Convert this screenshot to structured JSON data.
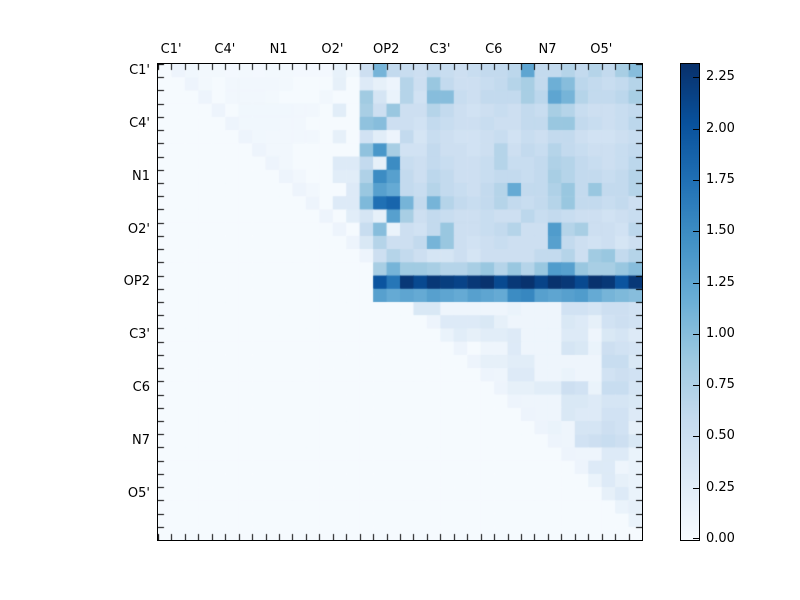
{
  "chart_data": {
    "type": "heatmap",
    "title": "",
    "xlabel": "",
    "ylabel": "",
    "axis_labels": [
      "C1'",
      "C4'",
      "N1",
      "O2'",
      "OP2",
      "C3'",
      "C6",
      "N7",
      "O5'"
    ],
    "cells_per_label": 4,
    "n": 36,
    "x_axis_side": "top",
    "triangle": "upper",
    "vmin": 0.0,
    "vmax": 2.32,
    "colormap": {
      "name": "Blues",
      "stops": [
        [
          0.0,
          "#f7fbff"
        ],
        [
          0.125,
          "#deebf7"
        ],
        [
          0.25,
          "#c6dbef"
        ],
        [
          0.375,
          "#9ecae1"
        ],
        [
          0.5,
          "#6baed6"
        ],
        [
          0.625,
          "#4292c6"
        ],
        [
          0.75,
          "#2171b5"
        ],
        [
          0.875,
          "#08519c"
        ],
        [
          1.0,
          "#08306b"
        ]
      ]
    },
    "colorbar": {
      "tick_values": [
        0.0,
        0.25,
        0.5,
        0.75,
        1.0,
        1.25,
        1.5,
        1.75,
        2.0,
        2.25
      ],
      "tick_labels": [
        "0.00",
        "0.25",
        "0.50",
        "0.75",
        "1.00",
        "1.25",
        "1.50",
        "1.75",
        "2.00",
        "2.25"
      ]
    },
    "matrix": [
      [
        0.02,
        0.12,
        0.08,
        0.06,
        0.06,
        0.05,
        0.06,
        0.05,
        0.06,
        0.06,
        0.05,
        0.05,
        0.05,
        0.18,
        0.08,
        0.5,
        1.1,
        0.6,
        0.55,
        0.5,
        0.6,
        0.55,
        0.5,
        0.55,
        0.6,
        0.6,
        0.65,
        1.25,
        0.6,
        0.6,
        0.7,
        0.6,
        0.7,
        0.6,
        0.8,
        1.0
      ],
      [
        0.02,
        0.02,
        0.12,
        0.06,
        0.02,
        0.07,
        0.07,
        0.07,
        0.07,
        0.06,
        0.02,
        0.02,
        0.02,
        0.2,
        0.02,
        0.3,
        0.2,
        0.12,
        0.7,
        0.5,
        0.9,
        0.6,
        0.5,
        0.5,
        0.55,
        0.6,
        0.7,
        0.8,
        0.6,
        1.15,
        1.0,
        0.65,
        0.6,
        0.55,
        0.6,
        0.7
      ],
      [
        0.02,
        0.02,
        0.02,
        0.12,
        0.02,
        0.07,
        0.07,
        0.07,
        0.06,
        0.02,
        0.02,
        0.02,
        0.07,
        0.02,
        0.02,
        0.85,
        0.4,
        0.15,
        0.7,
        0.45,
        1.0,
        1.0,
        0.55,
        0.5,
        0.6,
        0.6,
        0.6,
        0.8,
        0.65,
        1.25,
        1.1,
        0.7,
        0.6,
        0.6,
        0.65,
        0.8
      ],
      [
        0.02,
        0.02,
        0.02,
        0.02,
        0.12,
        0.02,
        0.08,
        0.08,
        0.08,
        0.08,
        0.07,
        0.07,
        0.02,
        0.25,
        0.02,
        0.8,
        0.5,
        0.9,
        0.5,
        0.5,
        0.7,
        0.6,
        0.5,
        0.45,
        0.5,
        0.55,
        0.5,
        0.6,
        0.55,
        0.8,
        0.7,
        0.55,
        0.5,
        0.5,
        0.55,
        0.6
      ],
      [
        0.02,
        0.02,
        0.02,
        0.02,
        0.02,
        0.12,
        0.08,
        0.08,
        0.08,
        0.07,
        0.07,
        0.02,
        0.02,
        0.02,
        0.02,
        0.95,
        1.0,
        0.5,
        0.5,
        0.45,
        0.6,
        0.55,
        0.5,
        0.5,
        0.55,
        0.5,
        0.5,
        0.6,
        0.6,
        0.9,
        0.9,
        0.6,
        0.55,
        0.5,
        0.55,
        0.65
      ],
      [
        0.02,
        0.02,
        0.02,
        0.02,
        0.02,
        0.02,
        0.12,
        0.08,
        0.07,
        0.07,
        0.07,
        0.07,
        0.02,
        0.2,
        0.02,
        0.45,
        0.25,
        0.12,
        0.6,
        0.4,
        0.55,
        0.5,
        0.45,
        0.45,
        0.5,
        0.55,
        0.45,
        0.55,
        0.5,
        0.6,
        0.6,
        0.5,
        0.45,
        0.45,
        0.5,
        0.55
      ],
      [
        0.02,
        0.02,
        0.02,
        0.02,
        0.02,
        0.02,
        0.02,
        0.12,
        0.07,
        0.07,
        0.02,
        0.02,
        0.02,
        0.02,
        0.02,
        0.95,
        1.4,
        0.8,
        0.45,
        0.45,
        0.6,
        0.5,
        0.5,
        0.45,
        0.5,
        0.7,
        0.5,
        0.6,
        0.55,
        0.7,
        0.6,
        0.55,
        0.5,
        0.5,
        0.55,
        0.6
      ],
      [
        0.02,
        0.02,
        0.02,
        0.02,
        0.02,
        0.02,
        0.02,
        0.02,
        0.12,
        0.07,
        0.02,
        0.02,
        0.02,
        0.3,
        0.3,
        0.6,
        0.2,
        1.5,
        0.55,
        0.5,
        0.6,
        0.55,
        0.5,
        0.5,
        0.55,
        0.7,
        0.55,
        0.55,
        0.6,
        0.75,
        0.7,
        0.6,
        0.55,
        0.5,
        0.55,
        0.65
      ],
      [
        0.02,
        0.02,
        0.02,
        0.02,
        0.02,
        0.02,
        0.02,
        0.02,
        0.02,
        0.12,
        0.07,
        0.02,
        0.02,
        0.25,
        0.25,
        0.75,
        1.5,
        1.3,
        0.6,
        0.5,
        0.65,
        0.6,
        0.5,
        0.5,
        0.55,
        0.6,
        0.6,
        0.55,
        0.6,
        0.8,
        0.7,
        0.6,
        0.6,
        0.55,
        0.6,
        0.7
      ],
      [
        0.02,
        0.02,
        0.02,
        0.02,
        0.02,
        0.02,
        0.02,
        0.02,
        0.02,
        0.02,
        0.12,
        0.07,
        0.02,
        0.02,
        0.3,
        0.9,
        1.3,
        1.2,
        0.6,
        0.55,
        0.7,
        0.6,
        0.55,
        0.5,
        0.6,
        0.7,
        1.2,
        0.6,
        0.6,
        0.75,
        0.9,
        0.6,
        0.9,
        0.6,
        0.6,
        0.7
      ],
      [
        0.02,
        0.02,
        0.02,
        0.02,
        0.02,
        0.02,
        0.02,
        0.02,
        0.02,
        0.02,
        0.02,
        0.12,
        0.02,
        0.3,
        0.3,
        1.05,
        1.75,
        1.85,
        1.1,
        0.6,
        1.1,
        0.7,
        0.6,
        0.55,
        0.6,
        0.7,
        0.6,
        0.55,
        0.6,
        0.7,
        0.9,
        0.6,
        0.6,
        0.55,
        0.6,
        0.5
      ],
      [
        0.02,
        0.02,
        0.02,
        0.02,
        0.02,
        0.02,
        0.02,
        0.02,
        0.02,
        0.02,
        0.02,
        0.02,
        0.12,
        0.02,
        0.25,
        0.4,
        0.2,
        1.3,
        0.8,
        0.5,
        0.6,
        0.55,
        0.5,
        0.5,
        0.55,
        0.5,
        0.5,
        0.65,
        0.55,
        0.6,
        0.55,
        0.5,
        0.5,
        0.45,
        0.5,
        0.55
      ],
      [
        0.02,
        0.02,
        0.02,
        0.02,
        0.02,
        0.02,
        0.02,
        0.02,
        0.02,
        0.02,
        0.02,
        0.02,
        0.02,
        0.12,
        0.02,
        0.55,
        1.0,
        0.15,
        0.5,
        0.45,
        0.6,
        0.9,
        0.5,
        0.5,
        0.55,
        0.6,
        0.7,
        0.5,
        0.5,
        1.35,
        0.7,
        0.8,
        0.5,
        0.5,
        0.45,
        0.65
      ],
      [
        0.02,
        0.02,
        0.02,
        0.02,
        0.02,
        0.02,
        0.02,
        0.02,
        0.02,
        0.02,
        0.02,
        0.02,
        0.02,
        0.02,
        0.12,
        0.35,
        0.7,
        0.5,
        0.5,
        0.6,
        1.1,
        0.9,
        0.5,
        0.45,
        0.5,
        0.55,
        0.5,
        0.5,
        0.5,
        1.3,
        0.6,
        0.5,
        0.45,
        0.5,
        0.4,
        0.5
      ],
      [
        0.02,
        0.02,
        0.02,
        0.02,
        0.02,
        0.02,
        0.02,
        0.02,
        0.02,
        0.02,
        0.02,
        0.02,
        0.02,
        0.02,
        0.02,
        0.12,
        0.5,
        0.7,
        0.6,
        0.5,
        0.4,
        0.4,
        0.5,
        0.4,
        0.5,
        0.5,
        0.5,
        0.5,
        0.6,
        0.6,
        0.7,
        0.5,
        0.85,
        0.9,
        0.6,
        0.7
      ],
      [
        0.02,
        0.02,
        0.02,
        0.02,
        0.02,
        0.02,
        0.02,
        0.02,
        0.02,
        0.02,
        0.02,
        0.02,
        0.02,
        0.02,
        0.02,
        0.02,
        0.8,
        1.1,
        0.85,
        0.85,
        0.8,
        0.7,
        0.7,
        0.8,
        0.9,
        0.7,
        0.9,
        0.7,
        0.9,
        1.35,
        1.3,
        0.9,
        0.8,
        0.8,
        0.9,
        1.0
      ],
      [
        0.02,
        0.02,
        0.02,
        0.02,
        0.02,
        0.02,
        0.02,
        0.02,
        0.02,
        0.02,
        0.02,
        0.02,
        0.02,
        0.02,
        0.02,
        0.02,
        2.0,
        1.7,
        2.25,
        2.1,
        2.25,
        2.2,
        2.15,
        2.25,
        2.3,
        2.1,
        2.25,
        2.3,
        2.15,
        2.3,
        2.25,
        2.1,
        2.3,
        2.25,
        2.0,
        2.25
      ],
      [
        0.02,
        0.02,
        0.02,
        0.02,
        0.02,
        0.02,
        0.02,
        0.02,
        0.02,
        0.02,
        0.02,
        0.02,
        0.02,
        0.02,
        0.02,
        0.02,
        1.3,
        1.2,
        1.25,
        1.2,
        1.3,
        1.25,
        1.2,
        1.3,
        1.25,
        1.2,
        1.5,
        1.55,
        1.3,
        1.25,
        1.3,
        1.35,
        1.2,
        1.1,
        1.05,
        1.0
      ],
      [
        0.02,
        0.02,
        0.02,
        0.02,
        0.02,
        0.02,
        0.02,
        0.02,
        0.02,
        0.02,
        0.02,
        0.02,
        0.02,
        0.02,
        0.02,
        0.02,
        0.02,
        0.02,
        0.02,
        0.35,
        0.35,
        0.1,
        0.1,
        0.1,
        0.1,
        0.1,
        0.15,
        0.1,
        0.1,
        0.1,
        0.45,
        0.45,
        0.4,
        0.5,
        0.5,
        0.45
      ],
      [
        0.02,
        0.02,
        0.02,
        0.02,
        0.02,
        0.02,
        0.02,
        0.02,
        0.02,
        0.02,
        0.02,
        0.02,
        0.02,
        0.02,
        0.02,
        0.02,
        0.02,
        0.02,
        0.02,
        0.02,
        0.12,
        0.3,
        0.3,
        0.3,
        0.35,
        0.2,
        0.1,
        0.1,
        0.1,
        0.1,
        0.35,
        0.3,
        0.2,
        0.45,
        0.5,
        0.45
      ],
      [
        0.02,
        0.02,
        0.02,
        0.02,
        0.02,
        0.02,
        0.02,
        0.02,
        0.02,
        0.02,
        0.02,
        0.02,
        0.02,
        0.02,
        0.02,
        0.02,
        0.02,
        0.02,
        0.02,
        0.02,
        0.02,
        0.15,
        0.25,
        0.2,
        0.25,
        0.25,
        0.3,
        0.1,
        0.1,
        0.1,
        0.3,
        0.3,
        0.1,
        0.35,
        0.4,
        0.3
      ],
      [
        0.02,
        0.02,
        0.02,
        0.02,
        0.02,
        0.02,
        0.02,
        0.02,
        0.02,
        0.02,
        0.02,
        0.02,
        0.02,
        0.02,
        0.02,
        0.02,
        0.02,
        0.02,
        0.02,
        0.02,
        0.02,
        0.02,
        0.12,
        0.02,
        0.1,
        0.1,
        0.3,
        0.1,
        0.1,
        0.1,
        0.4,
        0.35,
        0.15,
        0.5,
        0.45,
        0.4
      ],
      [
        0.02,
        0.02,
        0.02,
        0.02,
        0.02,
        0.02,
        0.02,
        0.02,
        0.02,
        0.02,
        0.02,
        0.02,
        0.02,
        0.02,
        0.02,
        0.02,
        0.02,
        0.02,
        0.02,
        0.02,
        0.02,
        0.02,
        0.02,
        0.12,
        0.2,
        0.2,
        0.25,
        0.25,
        0.1,
        0.1,
        0.1,
        0.1,
        0.1,
        0.55,
        0.55,
        0.35
      ],
      [
        0.02,
        0.02,
        0.02,
        0.02,
        0.02,
        0.02,
        0.02,
        0.02,
        0.02,
        0.02,
        0.02,
        0.02,
        0.02,
        0.02,
        0.02,
        0.02,
        0.02,
        0.02,
        0.02,
        0.02,
        0.02,
        0.02,
        0.02,
        0.02,
        0.12,
        0.1,
        0.3,
        0.3,
        0.1,
        0.1,
        0.15,
        0.1,
        0.1,
        0.45,
        0.5,
        0.45
      ],
      [
        0.02,
        0.02,
        0.02,
        0.02,
        0.02,
        0.02,
        0.02,
        0.02,
        0.02,
        0.02,
        0.02,
        0.02,
        0.02,
        0.02,
        0.02,
        0.02,
        0.02,
        0.02,
        0.02,
        0.02,
        0.02,
        0.02,
        0.02,
        0.02,
        0.02,
        0.12,
        0.2,
        0.2,
        0.25,
        0.25,
        0.5,
        0.45,
        0.15,
        0.55,
        0.55,
        0.4
      ],
      [
        0.02,
        0.02,
        0.02,
        0.02,
        0.02,
        0.02,
        0.02,
        0.02,
        0.02,
        0.02,
        0.02,
        0.02,
        0.02,
        0.02,
        0.02,
        0.02,
        0.02,
        0.02,
        0.02,
        0.02,
        0.02,
        0.02,
        0.02,
        0.02,
        0.02,
        0.02,
        0.12,
        0.1,
        0.1,
        0.1,
        0.35,
        0.35,
        0.3,
        0.4,
        0.4,
        0.35
      ],
      [
        0.02,
        0.02,
        0.02,
        0.02,
        0.02,
        0.02,
        0.02,
        0.02,
        0.02,
        0.02,
        0.02,
        0.02,
        0.02,
        0.02,
        0.02,
        0.02,
        0.02,
        0.02,
        0.02,
        0.02,
        0.02,
        0.02,
        0.02,
        0.02,
        0.02,
        0.02,
        0.02,
        0.12,
        0.1,
        0.1,
        0.35,
        0.3,
        0.3,
        0.45,
        0.45,
        0.3
      ],
      [
        0.02,
        0.02,
        0.02,
        0.02,
        0.02,
        0.02,
        0.02,
        0.02,
        0.02,
        0.02,
        0.02,
        0.02,
        0.02,
        0.02,
        0.02,
        0.02,
        0.02,
        0.02,
        0.02,
        0.02,
        0.02,
        0.02,
        0.02,
        0.02,
        0.02,
        0.02,
        0.02,
        0.02,
        0.12,
        0.15,
        0.1,
        0.4,
        0.4,
        0.5,
        0.45,
        0.2
      ],
      [
        0.02,
        0.02,
        0.02,
        0.02,
        0.02,
        0.02,
        0.02,
        0.02,
        0.02,
        0.02,
        0.02,
        0.02,
        0.02,
        0.02,
        0.02,
        0.02,
        0.02,
        0.02,
        0.02,
        0.02,
        0.02,
        0.02,
        0.02,
        0.02,
        0.02,
        0.02,
        0.02,
        0.02,
        0.02,
        0.12,
        0.1,
        0.45,
        0.5,
        0.55,
        0.5,
        0.35
      ],
      [
        0.02,
        0.02,
        0.02,
        0.02,
        0.02,
        0.02,
        0.02,
        0.02,
        0.02,
        0.02,
        0.02,
        0.02,
        0.02,
        0.02,
        0.02,
        0.02,
        0.02,
        0.02,
        0.02,
        0.02,
        0.02,
        0.02,
        0.02,
        0.02,
        0.02,
        0.02,
        0.02,
        0.02,
        0.02,
        0.02,
        0.12,
        0.1,
        0.1,
        0.3,
        0.3,
        0.15
      ],
      [
        0.02,
        0.02,
        0.02,
        0.02,
        0.02,
        0.02,
        0.02,
        0.02,
        0.02,
        0.02,
        0.02,
        0.02,
        0.02,
        0.02,
        0.02,
        0.02,
        0.02,
        0.02,
        0.02,
        0.02,
        0.02,
        0.02,
        0.02,
        0.02,
        0.02,
        0.02,
        0.02,
        0.02,
        0.02,
        0.02,
        0.02,
        0.12,
        0.3,
        0.3,
        0.1,
        0.15
      ],
      [
        0.02,
        0.02,
        0.02,
        0.02,
        0.02,
        0.02,
        0.02,
        0.02,
        0.02,
        0.02,
        0.02,
        0.02,
        0.02,
        0.02,
        0.02,
        0.02,
        0.02,
        0.02,
        0.02,
        0.02,
        0.02,
        0.02,
        0.02,
        0.02,
        0.02,
        0.02,
        0.02,
        0.02,
        0.02,
        0.02,
        0.02,
        0.02,
        0.15,
        0.3,
        0.2,
        0.15
      ],
      [
        0.02,
        0.02,
        0.02,
        0.02,
        0.02,
        0.02,
        0.02,
        0.02,
        0.02,
        0.02,
        0.02,
        0.02,
        0.02,
        0.02,
        0.02,
        0.02,
        0.02,
        0.02,
        0.02,
        0.02,
        0.02,
        0.02,
        0.02,
        0.02,
        0.02,
        0.02,
        0.02,
        0.02,
        0.02,
        0.02,
        0.02,
        0.02,
        0.02,
        0.2,
        0.3,
        0.15
      ],
      [
        0.02,
        0.02,
        0.02,
        0.02,
        0.02,
        0.02,
        0.02,
        0.02,
        0.02,
        0.02,
        0.02,
        0.02,
        0.02,
        0.02,
        0.02,
        0.02,
        0.02,
        0.02,
        0.02,
        0.02,
        0.02,
        0.02,
        0.02,
        0.02,
        0.02,
        0.02,
        0.02,
        0.02,
        0.02,
        0.02,
        0.02,
        0.02,
        0.02,
        0.02,
        0.15,
        0.2
      ],
      [
        0.02,
        0.02,
        0.02,
        0.02,
        0.02,
        0.02,
        0.02,
        0.02,
        0.02,
        0.02,
        0.02,
        0.02,
        0.02,
        0.02,
        0.02,
        0.02,
        0.02,
        0.02,
        0.02,
        0.02,
        0.02,
        0.02,
        0.02,
        0.02,
        0.02,
        0.02,
        0.02,
        0.02,
        0.02,
        0.02,
        0.02,
        0.02,
        0.02,
        0.02,
        0.02,
        0.15
      ],
      [
        0.02,
        0.02,
        0.02,
        0.02,
        0.02,
        0.02,
        0.02,
        0.02,
        0.02,
        0.02,
        0.02,
        0.02,
        0.02,
        0.02,
        0.02,
        0.02,
        0.02,
        0.02,
        0.02,
        0.02,
        0.02,
        0.02,
        0.02,
        0.02,
        0.02,
        0.02,
        0.02,
        0.02,
        0.02,
        0.02,
        0.02,
        0.02,
        0.02,
        0.02,
        0.02,
        0.02
      ]
    ]
  }
}
